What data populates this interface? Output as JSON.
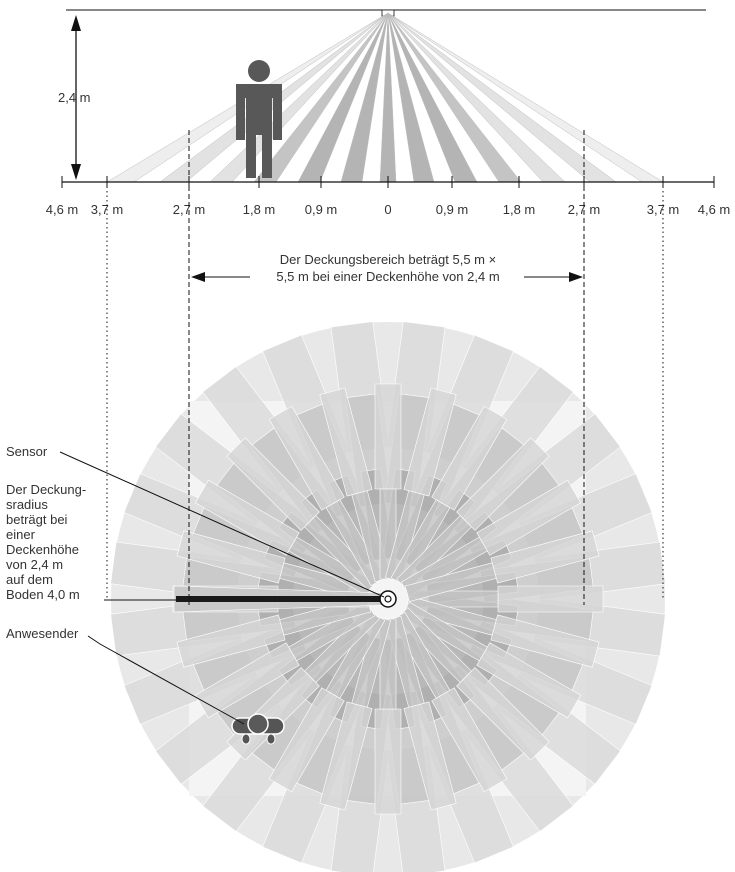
{
  "height_label": "2,4 m",
  "axis_ticks": [
    "4,6 m",
    "3,7 m",
    "2,7 m",
    "1,8 m",
    "0,9 m",
    "0",
    "0,9 m",
    "1,8 m",
    "2,7 m",
    "3,7 m",
    "4,6 m"
  ],
  "coverage_note": {
    "line1": "Der Deckungsbereich beträgt 5,5 m ×",
    "line2": "5,5 m bei einer Deckenhöhe von 2,4 m"
  },
  "callouts": {
    "sensor": "Sensor",
    "radius_lines": [
      "Der Deckung-",
      "sradius",
      "beträgt bei",
      "einer",
      "Deckenhöhe",
      "von 2,4 m",
      "auf dem",
      "Boden 4,0 m"
    ],
    "occupant": "Anwesender"
  },
  "colors": {
    "outer_circle": "#e8e8e8",
    "inner_square": "#f4f4f4",
    "wedge_light": "#d9d9d9",
    "wedge_mid": "#c4c4c4",
    "wedge_dark": "#a9a9a9",
    "figure": "#585858",
    "line": "#111111"
  }
}
